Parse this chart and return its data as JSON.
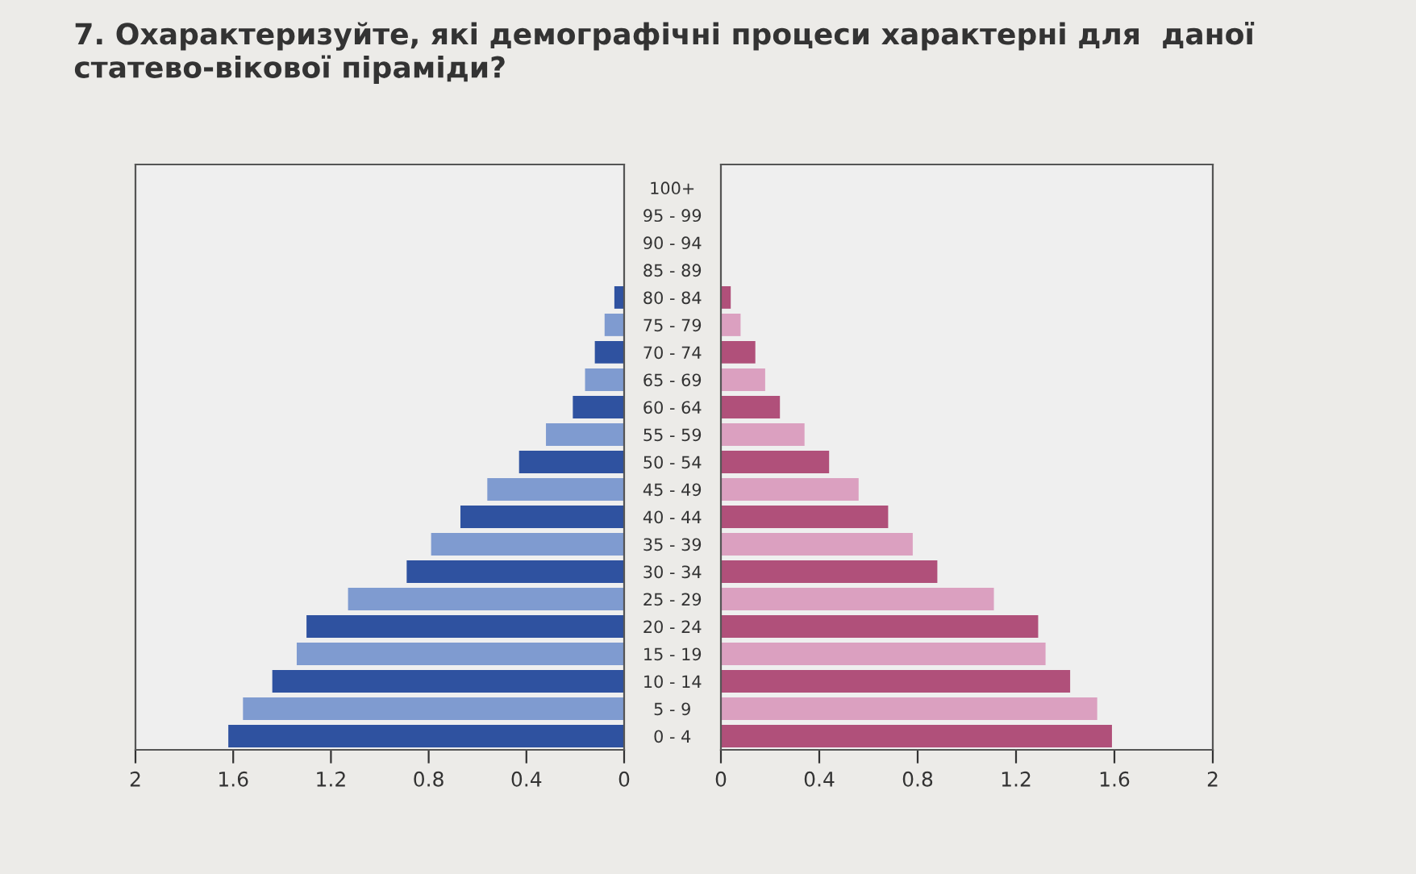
{
  "chart_data": [
    {
      "type": "bar",
      "orientation": "horizontal",
      "title": "7. Охарактеризуйте, які демографічні процеси характерні для  даної статево-вікової піраміди?",
      "categories": [
        "100+",
        "95 - 99",
        "90 - 94",
        "85 - 89",
        "80 - 84",
        "75 - 79",
        "70 - 74",
        "65 - 69",
        "60 - 64",
        "55 - 59",
        "50 - 54",
        "45 - 49",
        "40 - 44",
        "35 - 39",
        "30 - 34",
        "25 - 29",
        "20 - 24",
        "15 - 19",
        "10 - 14",
        "5 - 9",
        "0 - 4"
      ],
      "series": [
        {
          "values": [
            0,
            0,
            0,
            0,
            0.04,
            0.08,
            0.12,
            0.16,
            0.21,
            0.32,
            0.43,
            0.56,
            0.67,
            0.79,
            0.89,
            1.13,
            1.3,
            1.34,
            1.44,
            1.56,
            1.62
          ],
          "colors": [
            "#2f52a0",
            "#7f9bd0",
            "#2f52a0",
            "#7f9bd0",
            "#2f52a0",
            "#7f9bd0",
            "#2f52a0",
            "#7f9bd0",
            "#2f52a0",
            "#7f9bd0",
            "#2f52a0",
            "#7f9bd0",
            "#2f52a0",
            "#7f9bd0",
            "#2f52a0",
            "#7f9bd0",
            "#2f52a0",
            "#7f9bd0",
            "#2f52a0",
            "#7f9bd0",
            "#2f52a0"
          ]
        }
      ],
      "xlim": [
        2,
        0
      ],
      "xticks": [
        2,
        1.6,
        1.2,
        0.8,
        0.4,
        0
      ],
      "grid": false,
      "legend": false
    },
    {
      "type": "bar",
      "orientation": "horizontal",
      "categories": [
        null,
        null,
        null,
        null,
        null,
        null,
        null,
        null,
        null,
        null,
        null,
        null,
        null,
        null,
        null,
        null,
        null,
        null,
        null,
        null,
        null
      ],
      "series": [
        {
          "values": [
            0,
            0,
            0,
            0,
            0.04,
            0.08,
            0.14,
            0.18,
            0.24,
            0.34,
            0.44,
            0.56,
            0.68,
            0.78,
            0.88,
            1.11,
            1.29,
            1.32,
            1.42,
            1.53,
            1.59
          ],
          "colors": [
            "#b0507a",
            "#dba0c0",
            "#b0507a",
            "#dba0c0",
            "#b0507a",
            "#dba0c0",
            "#b0507a",
            "#dba0c0",
            "#b0507a",
            "#dba0c0",
            "#b0507a",
            "#dba0c0",
            "#b0507a",
            "#dba0c0",
            "#b0507a",
            "#dba0c0",
            "#b0507a",
            "#dba0c0",
            "#b0507a",
            "#dba0c0",
            "#b0507a"
          ]
        }
      ],
      "xlim": [
        0,
        2
      ],
      "xticks": [
        0,
        0.4,
        0.8,
        1.2,
        1.6,
        2
      ],
      "tick_labels": "x",
      "grid": false,
      "legend": false
    }
  ]
}
